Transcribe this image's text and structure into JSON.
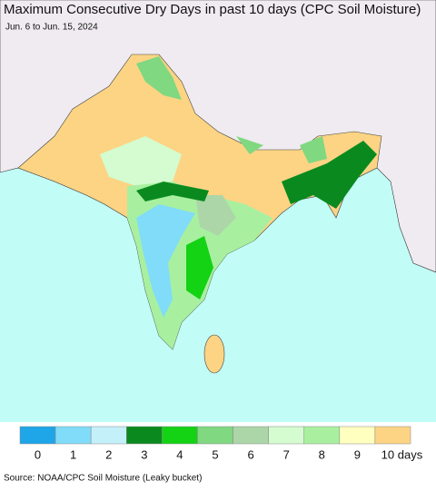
{
  "title": "Maximum Consecutive Dry Days in past 10 days (CPC Soil Moisture)",
  "subtitle": "Jun. 6 to Jun. 15, 2024",
  "legend": {
    "items": [
      {
        "label": "0",
        "color": "#1ea6e8"
      },
      {
        "label": "1",
        "color": "#80dcf8"
      },
      {
        "label": "2",
        "color": "#c4f0fa"
      },
      {
        "label": "3",
        "color": "#0a8a1e"
      },
      {
        "label": "4",
        "color": "#14d214"
      },
      {
        "label": "5",
        "color": "#80d880"
      },
      {
        "label": "6",
        "color": "#acd6a8"
      },
      {
        "label": "7",
        "color": "#d4fcd0"
      },
      {
        "label": "8",
        "color": "#a8f0a0"
      },
      {
        "label": "9",
        "color": "#ffffc0"
      },
      {
        "label": "10 days",
        "color": "#fcd484"
      }
    ]
  },
  "source": "Source: NOAA/CPC Soil Moisture (Leaky bucket)"
}
